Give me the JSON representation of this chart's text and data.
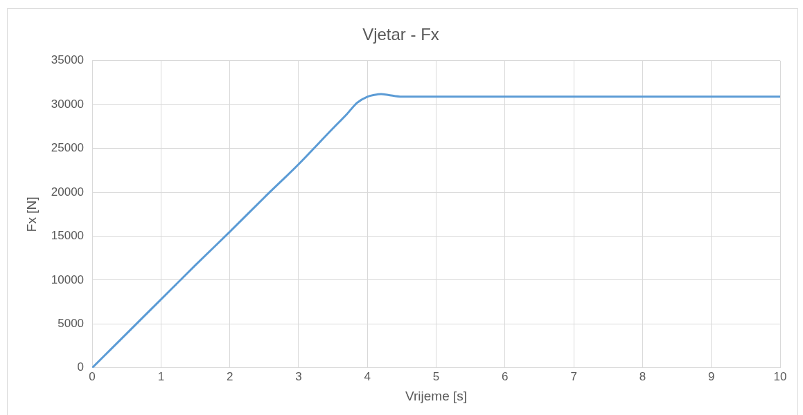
{
  "chart_data": {
    "type": "line",
    "title": "Vjetar - Fx",
    "xlabel": "Vrijeme [s]",
    "ylabel": "Fx [N]",
    "x": [
      0,
      0.5,
      1,
      1.5,
      2,
      2.5,
      3,
      3.5,
      3.7,
      3.85,
      4,
      4.1,
      4.2,
      4.3,
      4.5,
      5,
      6,
      7,
      8,
      9,
      10
    ],
    "series": [
      {
        "color": "#5b9bd5",
        "values": [
          0,
          3900,
          7800,
          11700,
          15500,
          19400,
          23200,
          27300,
          28900,
          30200,
          30900,
          31100,
          31200,
          31100,
          30900,
          30900,
          30900,
          30900,
          30900,
          30900,
          30900
        ]
      }
    ],
    "xlim": [
      0,
      10
    ],
    "xticks": [
      0,
      1,
      2,
      3,
      4,
      5,
      6,
      7,
      8,
      9,
      10
    ],
    "ylim": [
      0,
      35000
    ],
    "yticks": [
      0,
      5000,
      10000,
      15000,
      20000,
      25000,
      30000,
      35000
    ],
    "grid": true,
    "legend": false,
    "marker": "none",
    "line_style": "solid"
  }
}
